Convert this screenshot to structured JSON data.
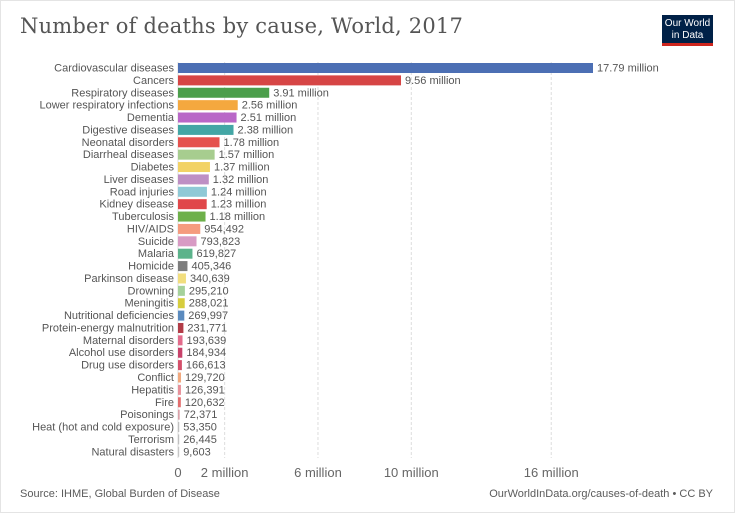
{
  "header": {
    "title": "Number of deaths by cause, World, 2017",
    "logo_line1": "Our World",
    "logo_line2": "in Data"
  },
  "footer": {
    "source": "Source: IHME, Global Burden of Disease",
    "url": "OurWorldInData.org/causes-of-death • CC BY"
  },
  "chart_data": {
    "type": "bar",
    "orientation": "horizontal",
    "title": "Number of deaths by cause, World, 2017",
    "categories": [
      "Cardiovascular diseases",
      "Cancers",
      "Respiratory diseases",
      "Lower respiratory infections",
      "Dementia",
      "Digestive diseases",
      "Neonatal disorders",
      "Diarrheal diseases",
      "Diabetes",
      "Liver diseases",
      "Road injuries",
      "Kidney disease",
      "Tuberculosis",
      "HIV/AIDS",
      "Suicide",
      "Malaria",
      "Homicide",
      "Parkinson disease",
      "Drowning",
      "Meningitis",
      "Nutritional deficiencies",
      "Protein-energy malnutrition",
      "Maternal disorders",
      "Alcohol use disorders",
      "Drug use disorders",
      "Conflict",
      "Hepatitis",
      "Fire",
      "Poisonings",
      "Heat (hot and cold exposure)",
      "Terrorism",
      "Natural disasters"
    ],
    "values": [
      17790000,
      9560000,
      3910000,
      2560000,
      2510000,
      2380000,
      1780000,
      1570000,
      1370000,
      1320000,
      1240000,
      1230000,
      1180000,
      954492,
      793823,
      619827,
      405346,
      340639,
      295210,
      288021,
      269997,
      231771,
      193639,
      184934,
      166613,
      129720,
      126391,
      120632,
      72371,
      53350,
      26445,
      9603
    ],
    "value_labels": [
      "17.79 million",
      "9.56 million",
      "3.91 million",
      "2.56 million",
      "2.51 million",
      "2.38 million",
      "1.78 million",
      "1.57 million",
      "1.37 million",
      "1.32 million",
      "1.24 million",
      "1.23 million",
      "1.18 million",
      "954,492",
      "793,823",
      "619,827",
      "405,346",
      "340,639",
      "295,210",
      "288,021",
      "269,997",
      "231,771",
      "193,639",
      "184,934",
      "166,613",
      "129,720",
      "126,391",
      "120,632",
      "72,371",
      "53,350",
      "26,445",
      "9,603"
    ],
    "colors": [
      "#4c6fb4",
      "#d64545",
      "#4b9e4b",
      "#f4a83f",
      "#b967c7",
      "#43a6a5",
      "#e5524e",
      "#a7cd8f",
      "#f2d265",
      "#be8fc4",
      "#8fc9d6",
      "#e0474a",
      "#6eb04a",
      "#f59b7e",
      "#d89bc4",
      "#5cb38b",
      "#7d7d7d",
      "#f2de7e",
      "#a5d19b",
      "#d6cd3e",
      "#5b8bbf",
      "#b23c47",
      "#e36b8b",
      "#c8426a",
      "#d44f6a",
      "#f1a97f",
      "#e8909a",
      "#e26d6d",
      "#d9a0a8",
      "#bfbfbf",
      "#bfbfbf",
      "#c6c6c6"
    ],
    "x_ticks": [
      0,
      2000000,
      6000000,
      10000000,
      16000000
    ],
    "x_tick_labels": [
      "0",
      "2 million",
      "6 million",
      "10 million",
      "16 million"
    ],
    "xlim": [
      0,
      17790000
    ],
    "grid": true
  }
}
